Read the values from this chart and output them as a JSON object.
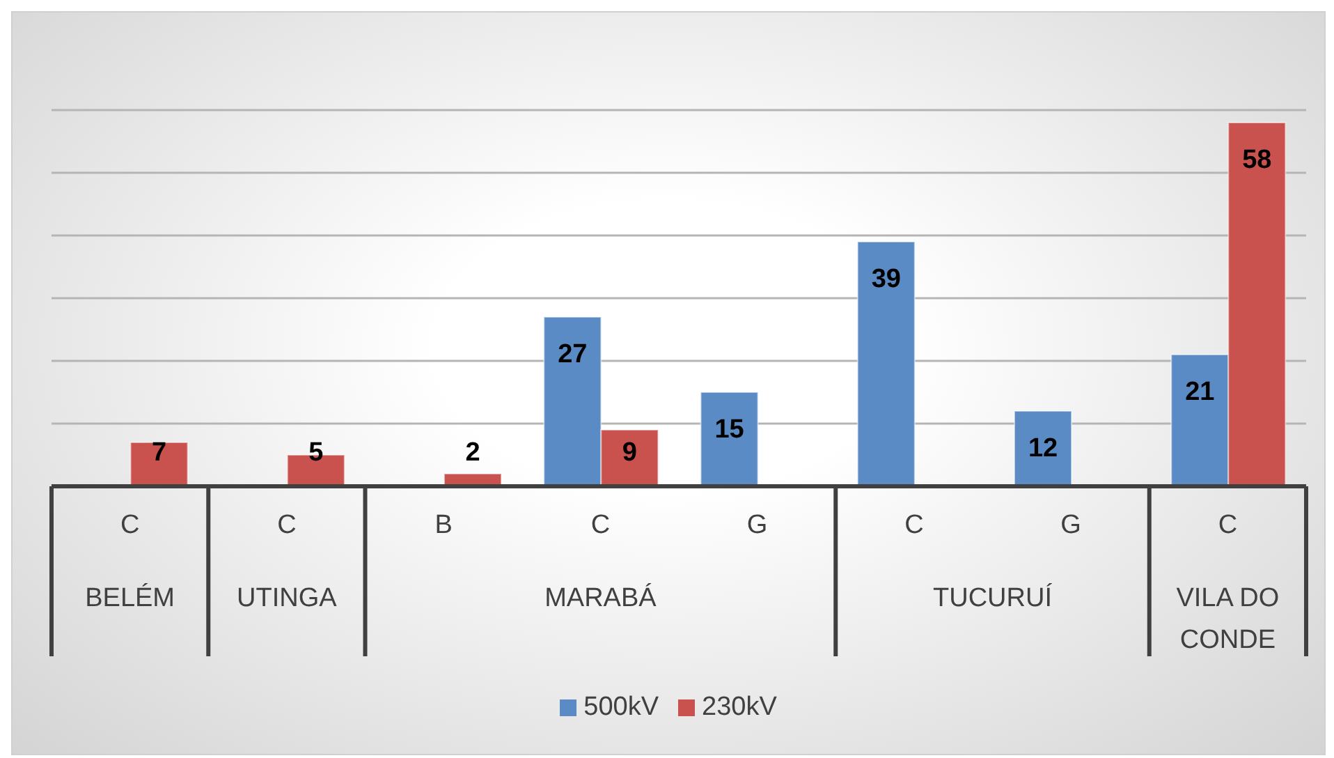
{
  "chart_data": {
    "type": "bar",
    "categories": [
      "C",
      "C",
      "B",
      "C",
      "G",
      "C",
      "G",
      "C"
    ],
    "series": [
      {
        "name": "500kV",
        "color": "#5b8bc4",
        "values": [
          null,
          null,
          null,
          27,
          15,
          39,
          12,
          21
        ]
      },
      {
        "name": "230kV",
        "color": "#c9524f",
        "values": [
          7,
          5,
          2,
          9,
          null,
          null,
          null,
          58
        ]
      }
    ],
    "annotations": [
      "BELÉM",
      "UTINGA",
      "MARABÁ",
      "TUCURUÍ",
      "VILA DO CONDE"
    ],
    "ylim": [
      0,
      60
    ],
    "yticks": [
      {
        "value": 0,
        "label": null
      },
      {
        "value": 10,
        "label": null
      },
      {
        "value": 20,
        "label": null
      },
      {
        "value": 30,
        "label": null
      },
      {
        "value": 40,
        "label": null
      },
      {
        "value": 50,
        "label": null
      },
      {
        "value": 60,
        "label": null
      }
    ],
    "tick_labels": "x",
    "grid": "y",
    "data_labels": true,
    "legend": "bottom"
  }
}
